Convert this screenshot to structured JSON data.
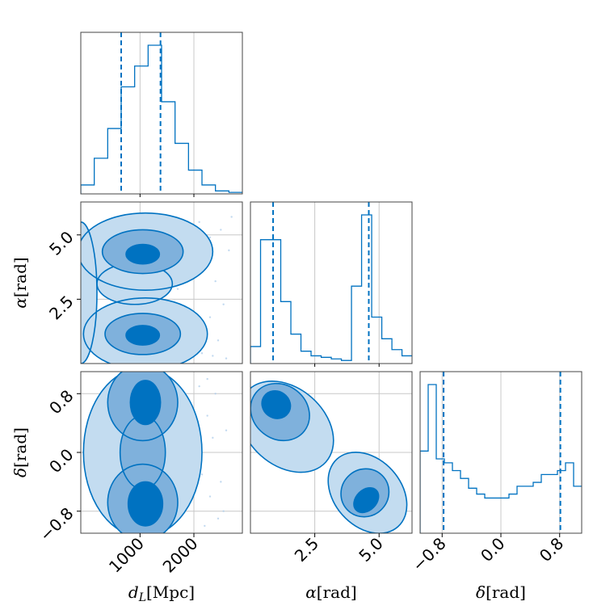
{
  "chart_data": {
    "type": "corner",
    "color": "#0072c1",
    "fill_colors": [
      "#c3dcf0",
      "#7fb1dc",
      "#0072c1"
    ],
    "grid": true,
    "parameters": [
      {
        "key": "dL",
        "label": "d_L[Mpc]",
        "label_math": "d",
        "label_sub": "L",
        "label_unit": "[Mpc]",
        "range": [
          -100,
          2900
        ],
        "ticks": [
          1000,
          2000
        ],
        "tick_labels": [
          "1000",
          "2000"
        ],
        "quantile_lines": [
          650,
          1380
        ],
        "hist_bins": [
          -100,
          150,
          400,
          650,
          900,
          1150,
          1400,
          1650,
          1900,
          2150,
          2400,
          2650,
          2900
        ],
        "hist_values": [
          0.06,
          0.24,
          0.44,
          0.72,
          0.86,
          1.0,
          0.62,
          0.34,
          0.16,
          0.06,
          0.02,
          0.01
        ]
      },
      {
        "key": "alpha",
        "label": "α[rad]",
        "label_math": "α",
        "label_sub": "",
        "label_unit": "[rad]",
        "range": [
          0,
          6.28
        ],
        "ticks": [
          2.5,
          5.0
        ],
        "tick_labels": [
          "2.5",
          "5.0"
        ],
        "quantile_lines": [
          0.88,
          4.6
        ],
        "hist_bins": [
          0,
          0.393,
          0.785,
          1.178,
          1.571,
          1.963,
          2.356,
          2.749,
          3.142,
          3.534,
          3.927,
          4.32,
          4.712,
          5.105,
          5.498,
          5.89,
          6.283
        ],
        "hist_values": [
          0.11,
          0.8,
          0.8,
          0.4,
          0.19,
          0.08,
          0.05,
          0.04,
          0.03,
          0.02,
          0.5,
          0.96,
          0.3,
          0.16,
          0.09,
          0.05
        ]
      },
      {
        "key": "delta",
        "label": "δ[rad]",
        "label_math": "δ",
        "label_sub": "",
        "label_unit": "[rad]",
        "range": [
          -1.1,
          1.1
        ],
        "ticks": [
          -0.8,
          0.0,
          0.8
        ],
        "tick_labels": [
          "−0.8",
          "0.0",
          "0.8"
        ],
        "quantile_lines": [
          -0.78,
          0.81
        ],
        "hist_bins": [
          -1.1,
          -0.99,
          -0.88,
          -0.77,
          -0.66,
          -0.55,
          -0.44,
          -0.33,
          -0.22,
          -0.11,
          0,
          0.11,
          0.22,
          0.33,
          0.44,
          0.55,
          0.66,
          0.77,
          0.88,
          0.99,
          1.1
        ],
        "hist_values": [
          0.42,
          0.76,
          0.38,
          0.36,
          0.32,
          0.28,
          0.23,
          0.2,
          0.18,
          0.18,
          0.18,
          0.2,
          0.24,
          0.24,
          0.26,
          0.3,
          0.3,
          0.32,
          0.36,
          0.24
        ]
      }
    ],
    "density_2d": [
      {
        "x": "dL",
        "y": "alpha",
        "levels": [
          [
            {
              "cx": 1100,
              "cy": 4.35,
              "rx": 1250,
              "ry": 1.5
            },
            {
              "cx": 1100,
              "cy": 1.15,
              "rx": 1150,
              "ry": 1.4
            },
            {
              "cx": -100,
              "cy": 2.75,
              "rx": 300,
              "ry": 2.75
            },
            {
              "cx": 900,
              "cy": 3.1,
              "rx": 700,
              "ry": 0.8
            }
          ],
          [
            {
              "cx": 1050,
              "cy": 4.35,
              "rx": 750,
              "ry": 0.85
            },
            {
              "cx": 1050,
              "cy": 1.15,
              "rx": 700,
              "ry": 0.8
            }
          ],
          [
            {
              "cx": 1050,
              "cy": 4.25,
              "rx": 310,
              "ry": 0.38
            },
            {
              "cx": 1050,
              "cy": 1.1,
              "rx": 310,
              "ry": 0.38
            }
          ]
        ],
        "points": [
          [
            2100,
            5.5
          ],
          [
            2300,
            4.9
          ],
          [
            2500,
            5.2
          ],
          [
            2650,
            4.4
          ],
          [
            2200,
            3.7
          ],
          [
            2400,
            3.2
          ],
          [
            2550,
            2.3
          ],
          [
            2300,
            1.8
          ],
          [
            2450,
            0.9
          ],
          [
            2150,
            0.4
          ],
          [
            2600,
            0.2
          ],
          [
            1700,
            2.9
          ],
          [
            1900,
            3.5
          ],
          [
            2700,
            5.7
          ],
          [
            2350,
            0.3
          ]
        ]
      },
      {
        "x": "dL",
        "y": "delta",
        "levels": [
          [
            {
              "cx": 1050,
              "cy": 0.0,
              "rx": 1100,
              "ry": 1.15
            }
          ],
          [
            {
              "cx": 1050,
              "cy": 0.68,
              "rx": 650,
              "ry": 0.52
            },
            {
              "cx": 1050,
              "cy": -0.68,
              "rx": 650,
              "ry": 0.52
            },
            {
              "cx": 1050,
              "cy": 0.0,
              "rx": 420,
              "ry": 0.5
            }
          ],
          [
            {
              "cx": 1100,
              "cy": 0.68,
              "rx": 280,
              "ry": 0.3
            },
            {
              "cx": 1100,
              "cy": -0.7,
              "rx": 320,
              "ry": 0.3
            }
          ]
        ],
        "points": [
          [
            2100,
            0.9
          ],
          [
            2250,
            0.5
          ],
          [
            2350,
            0.2
          ],
          [
            2150,
            -0.3
          ],
          [
            2300,
            -0.6
          ],
          [
            2450,
            -0.9
          ],
          [
            2200,
            -1.0
          ],
          [
            2400,
            0.8
          ],
          [
            2500,
            -0.4
          ],
          [
            2600,
            0.3
          ],
          [
            2250,
            1.0
          ],
          [
            2550,
            -0.8
          ]
        ]
      },
      {
        "x": "alpha",
        "y": "delta",
        "levels": [
          [
            {
              "cx": 1.4,
              "cy": 0.35,
              "rx": 1.5,
              "ry": 0.72,
              "rot": 48
            },
            {
              "cx": 4.55,
              "cy": -0.55,
              "rx": 1.3,
              "ry": 0.62,
              "rot": 42
            }
          ],
          [
            {
              "cx": 1.15,
              "cy": 0.55,
              "rx": 1.05,
              "ry": 0.42,
              "rot": 52
            },
            {
              "cx": 4.45,
              "cy": -0.55,
              "rx": 0.95,
              "ry": 0.32,
              "rot": 45
            }
          ],
          [
            {
              "cx": 1.0,
              "cy": 0.65,
              "rx": 0.52,
              "ry": 0.2,
              "rot": 55
            },
            {
              "cx": 4.5,
              "cy": -0.65,
              "rx": 0.55,
              "ry": 0.14,
              "rot": 45
            }
          ]
        ],
        "points": []
      }
    ]
  }
}
